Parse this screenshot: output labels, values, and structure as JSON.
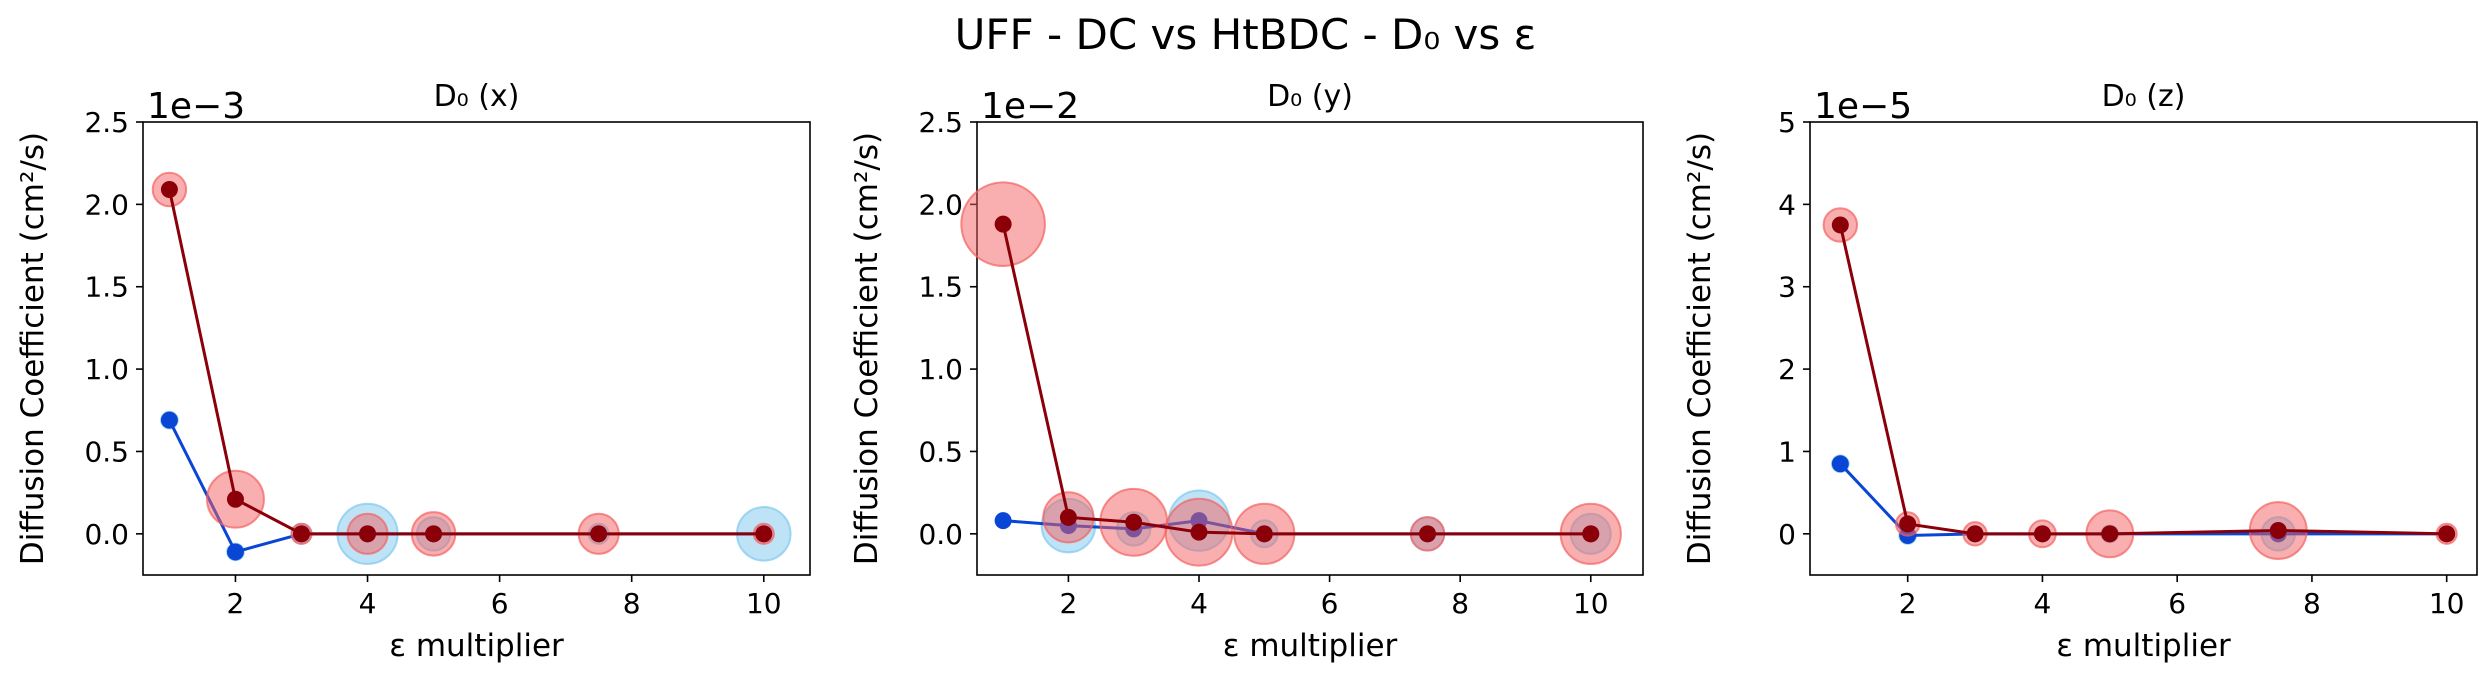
{
  "figure": {
    "title": "UFF - DC vs HtBDC - D₀ vs ε"
  },
  "chart_data": [
    {
      "type": "scatter",
      "title": "D₀ (x)",
      "xlabel": "ε multiplier",
      "ylabel": "Diffusion Coefficient (cm²/s)",
      "offset_label": "1e−3",
      "xlim": [
        0.6,
        10.7
      ],
      "ylim": [
        -0.25,
        2.5
      ],
      "xticks": [
        2,
        4,
        6,
        8,
        10
      ],
      "yticks": [
        0.0,
        0.5,
        1.0,
        1.5,
        2.0,
        2.5
      ],
      "series": [
        {
          "color": "#0a46d6",
          "err_color": "#7ec8ee",
          "points": [
            {
              "x": 1,
              "y": 0.69,
              "err": 0.05
            },
            {
              "x": 2,
              "y": -0.11,
              "err": 0.05
            },
            {
              "x": 3,
              "y": 0.0,
              "err": 0.06
            },
            {
              "x": 4,
              "y": 0.0,
              "err": 0.18
            },
            {
              "x": 5,
              "y": 0.0,
              "err": 0.1
            },
            {
              "x": 7.5,
              "y": 0.0,
              "err": 0.06
            },
            {
              "x": 10,
              "y": 0.0,
              "err": 0.16
            }
          ]
        },
        {
          "color": "#8b0008",
          "err_color": "#f46060",
          "points": [
            {
              "x": 1,
              "y": 2.09,
              "err": 0.1
            },
            {
              "x": 2,
              "y": 0.21,
              "err": 0.17
            },
            {
              "x": 3,
              "y": 0.0,
              "err": 0.06
            },
            {
              "x": 4,
              "y": 0.0,
              "err": 0.12
            },
            {
              "x": 5,
              "y": 0.0,
              "err": 0.13
            },
            {
              "x": 7.5,
              "y": 0.0,
              "err": 0.12
            },
            {
              "x": 10,
              "y": 0.0,
              "err": 0.06
            }
          ]
        }
      ]
    },
    {
      "type": "scatter",
      "title": "D₀ (y)",
      "xlabel": "ε multiplier",
      "ylabel": "Diffusion Coefficient (cm²/s)",
      "offset_label": "1e−2",
      "xlim": [
        0.6,
        10.8
      ],
      "ylim": [
        -0.25,
        2.5
      ],
      "xticks": [
        2,
        4,
        6,
        8,
        10
      ],
      "yticks": [
        0.0,
        0.5,
        1.0,
        1.5,
        2.0,
        2.5
      ],
      "series": [
        {
          "color": "#0a46d6",
          "err_color": "#7ec8ee",
          "points": [
            {
              "x": 1,
              "y": 0.08,
              "err": 0.04
            },
            {
              "x": 2,
              "y": 0.05,
              "err": 0.16
            },
            {
              "x": 3,
              "y": 0.03,
              "err": 0.1
            },
            {
              "x": 4,
              "y": 0.08,
              "err": 0.18
            },
            {
              "x": 5,
              "y": 0.0,
              "err": 0.08
            },
            {
              "x": 7.5,
              "y": 0.0,
              "err": 0.1
            },
            {
              "x": 10,
              "y": 0.0,
              "err": 0.12
            }
          ]
        },
        {
          "color": "#8b0008",
          "err_color": "#f46060",
          "points": [
            {
              "x": 1,
              "y": 1.88,
              "err": 0.25
            },
            {
              "x": 2,
              "y": 0.1,
              "err": 0.15
            },
            {
              "x": 3,
              "y": 0.07,
              "err": 0.2
            },
            {
              "x": 4,
              "y": 0.01,
              "err": 0.2
            },
            {
              "x": 5,
              "y": 0.0,
              "err": 0.18
            },
            {
              "x": 7.5,
              "y": 0.0,
              "err": 0.1
            },
            {
              "x": 10,
              "y": 0.0,
              "err": 0.18
            }
          ]
        }
      ]
    },
    {
      "type": "scatter",
      "title": "D₀ (z)",
      "xlabel": "ε multiplier",
      "ylabel": "Diffusion Coefficient (cm²/s)",
      "offset_label": "1e−5",
      "xlim": [
        0.55,
        10.45
      ],
      "ylim": [
        -0.5,
        5
      ],
      "xticks": [
        2,
        4,
        6,
        8,
        10
      ],
      "yticks": [
        0,
        1,
        2,
        3,
        4,
        5
      ],
      "series": [
        {
          "color": "#0a46d6",
          "err_color": "#7ec8ee",
          "points": [
            {
              "x": 1,
              "y": 0.85,
              "err": 0.1
            },
            {
              "x": 2,
              "y": -0.02,
              "err": 0.1
            },
            {
              "x": 3,
              "y": 0.0,
              "err": 0.08
            },
            {
              "x": 4,
              "y": 0.0,
              "err": 0.08
            },
            {
              "x": 5,
              "y": 0.0,
              "err": 0.1
            },
            {
              "x": 7.5,
              "y": 0.0,
              "err": 0.2
            },
            {
              "x": 10,
              "y": 0.0,
              "err": 0.08
            }
          ]
        },
        {
          "color": "#8b0008",
          "err_color": "#f46060",
          "points": [
            {
              "x": 1,
              "y": 3.75,
              "err": 0.2
            },
            {
              "x": 2,
              "y": 0.12,
              "err": 0.14
            },
            {
              "x": 3,
              "y": 0.0,
              "err": 0.14
            },
            {
              "x": 4,
              "y": 0.0,
              "err": 0.16
            },
            {
              "x": 5,
              "y": 0.0,
              "err": 0.28
            },
            {
              "x": 7.5,
              "y": 0.04,
              "err": 0.34
            },
            {
              "x": 10,
              "y": 0.0,
              "err": 0.12
            }
          ]
        }
      ]
    }
  ]
}
